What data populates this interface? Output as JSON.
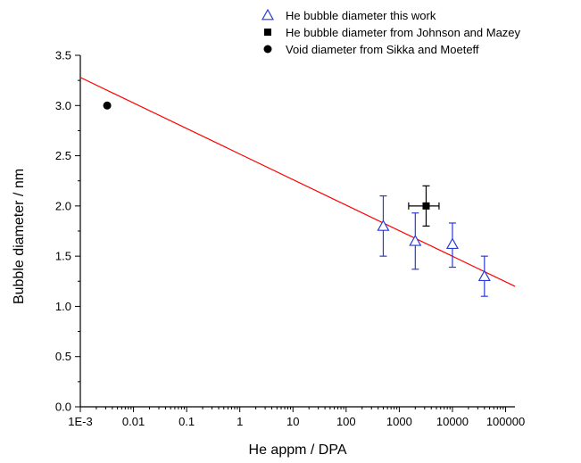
{
  "chart_data": {
    "type": "scatter",
    "x_scale": "log",
    "xlabel": "He appm / DPA",
    "ylabel": "Bubble diameter / nm",
    "xlim": [
      0.001,
      150000
    ],
    "ylim": [
      0.0,
      3.5
    ],
    "x_ticks": [
      {
        "value": 0.001,
        "label": "1E-3"
      },
      {
        "value": 0.01,
        "label": "0.01"
      },
      {
        "value": 0.1,
        "label": "0.1"
      },
      {
        "value": 1,
        "label": "1"
      },
      {
        "value": 10,
        "label": "10"
      },
      {
        "value": 100,
        "label": "100"
      },
      {
        "value": 1000,
        "label": "1000"
      },
      {
        "value": 10000,
        "label": "10000"
      },
      {
        "value": 100000,
        "label": "100000"
      }
    ],
    "y_ticks": [
      {
        "value": 0.0,
        "label": "0.0"
      },
      {
        "value": 0.5,
        "label": "0.5"
      },
      {
        "value": 1.0,
        "label": "1.0"
      },
      {
        "value": 1.5,
        "label": "1.5"
      },
      {
        "value": 2.0,
        "label": "2.0"
      },
      {
        "value": 2.5,
        "label": "2.5"
      },
      {
        "value": 3.0,
        "label": "3.0"
      },
      {
        "value": 3.5,
        "label": "3.5"
      }
    ],
    "grid": false,
    "legend_position": "top-right",
    "series": [
      {
        "name": "He bubble diameter this work",
        "marker": "open-triangle",
        "color": "#2b3bd6",
        "points": [
          {
            "x": 500,
            "y": 1.8,
            "y_low": 1.5,
            "y_high": 2.1
          },
          {
            "x": 2000,
            "y": 1.65,
            "y_low": 1.37,
            "y_high": 1.93
          },
          {
            "x": 10000,
            "y": 1.62,
            "y_low": 1.39,
            "y_high": 1.83
          },
          {
            "x": 40000,
            "y": 1.3,
            "y_low": 1.1,
            "y_high": 1.5
          }
        ]
      },
      {
        "name": "He bubble diameter from Johnson and Mazey",
        "marker": "filled-square",
        "color": "#000000",
        "points": [
          {
            "x": 3200,
            "y": 2.0,
            "y_low": 1.8,
            "y_high": 2.2,
            "x_low": 1500,
            "x_high": 5600
          }
        ]
      },
      {
        "name": "Void diameter from Sikka and Moeteff",
        "marker": "filled-circle",
        "color": "#000000",
        "points": [
          {
            "x": 0.0032,
            "y": 3.0
          }
        ]
      }
    ],
    "fit_line": {
      "color": "#ff0000",
      "points": [
        {
          "x": 0.001,
          "y": 3.28
        },
        {
          "x": 150000,
          "y": 1.2
        }
      ]
    }
  }
}
